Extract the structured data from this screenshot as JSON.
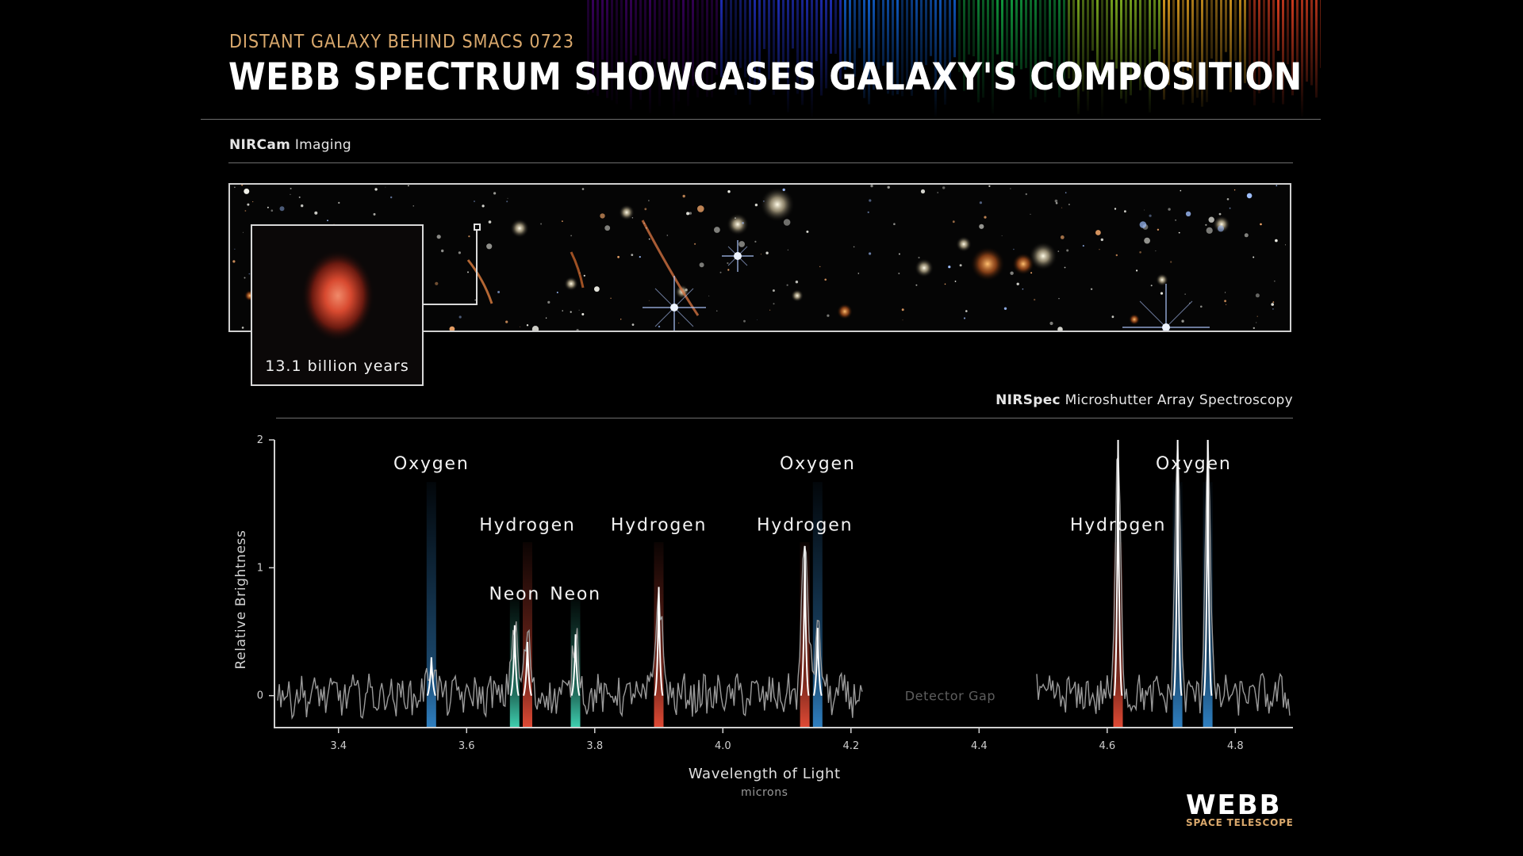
{
  "header": {
    "subtitle": "DISTANT GALAXY BEHIND SMACS 0723",
    "title": "WEBB SPECTRUM SHOWCASES GALAXY'S COMPOSITION"
  },
  "imaging": {
    "label_bold": "NIRCam",
    "label_rest": " Imaging",
    "inset_caption": "13.1 billion years"
  },
  "spectroscopy": {
    "label_bold": "NIRSpec",
    "label_rest": " Microshutter Array Spectroscopy"
  },
  "logo": {
    "name": "WEBB",
    "tagline": "SPACE TELESCOPE"
  },
  "colors": {
    "oxygen": "#2f7fc0",
    "hydrogen": "#e04a35",
    "neon": "#3fd0b0",
    "spectrum": "#9a9a9a",
    "accent": "#d9a86c"
  },
  "chart_data": {
    "type": "line",
    "xlabel": "Wavelength of Light",
    "xunit": "microns",
    "ylabel": "Relative Brightness",
    "xlim": [
      3.3,
      4.89
    ],
    "ylim": [
      -0.25,
      2
    ],
    "xticks": [
      "3.4",
      "3.6",
      "3.8",
      "4.0",
      "4.2",
      "4.4",
      "4.6",
      "4.8"
    ],
    "yticks": [
      "0",
      "1",
      "2"
    ],
    "detector_gap": {
      "label": "Detector Gap",
      "x_start": 4.22,
      "x_end": 4.49
    },
    "emission_lines": [
      {
        "element": "oxygen",
        "wavelength": 3.545,
        "peak": 0.3
      },
      {
        "element": "neon",
        "wavelength": 3.675,
        "peak": 0.55
      },
      {
        "element": "hydrogen",
        "wavelength": 3.695,
        "peak": 0.42
      },
      {
        "element": "neon",
        "wavelength": 3.77,
        "peak": 0.48
      },
      {
        "element": "hydrogen",
        "wavelength": 3.9,
        "peak": 0.85
      },
      {
        "element": "hydrogen",
        "wavelength": 4.128,
        "peak": 1.17
      },
      {
        "element": "oxygen",
        "wavelength": 4.148,
        "peak": 0.53
      },
      {
        "element": "hydrogen",
        "wavelength": 4.617,
        "peak": 2.0
      },
      {
        "element": "oxygen",
        "wavelength": 4.71,
        "peak": 2.0
      },
      {
        "element": "oxygen",
        "wavelength": 4.757,
        "peak": 2.0
      }
    ],
    "annotations": [
      {
        "text": "Oxygen",
        "x": 3.545,
        "y": 1.77
      },
      {
        "text": "Hydrogen",
        "x": 3.695,
        "y": 1.29
      },
      {
        "text": "Neon",
        "x": 3.675,
        "y": 0.75
      },
      {
        "text": "Neon",
        "x": 3.77,
        "y": 0.75
      },
      {
        "text": "Hydrogen",
        "x": 3.9,
        "y": 1.29
      },
      {
        "text": "Oxygen",
        "x": 4.148,
        "y": 1.77
      },
      {
        "text": "Hydrogen",
        "x": 4.128,
        "y": 1.29
      },
      {
        "text": "Hydrogen",
        "x": 4.617,
        "y": 1.29
      },
      {
        "text": "Oxygen",
        "x": 4.735,
        "y": 1.77
      }
    ]
  }
}
